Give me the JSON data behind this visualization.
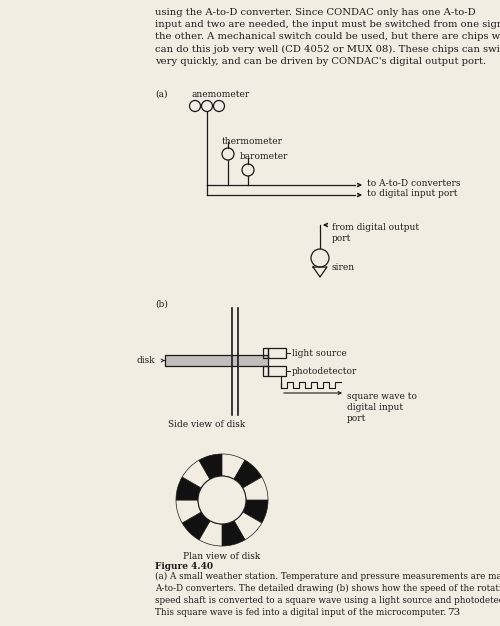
{
  "bg_color": "#f2ede3",
  "text_color": "#1a1a1a",
  "header_text": "using the A-to-D converter. Since CONDAC only has one A-to-D\ninput and two are needed, the input must be switched from one signal to\nthe other. A mechanical switch could be used, but there are chips which\ncan do this job very well (CD 4052 or MUX 08). These chips can switch\nvery quickly, and can be driven by CONDAC's digital output port.",
  "label_a": "(a)",
  "label_b": "(b)",
  "label_anemometer": "anemometer",
  "label_thermometer": "thermometer",
  "label_barometer": "barometer",
  "label_to_atod": "to A-to-D converters",
  "label_to_digital": "to digital input port",
  "label_from_digital": "from digital output\nport",
  "label_siren": "siren",
  "label_disk": "disk",
  "label_light_source": "light source",
  "label_photodetector": "photodetector",
  "label_square_wave": "square wave to\ndigital input\nport",
  "label_side_view": "Side view of disk",
  "label_plan_view": "Plan view of disk",
  "fig_caption_bold": "Figure 4.40",
  "fig_caption_text": "(a) A small weather station. Temperature and pressure measurements are made using\nA-to-D converters. The detailed drawing (b) shows how the speed of the rotating wind-\nspeed shaft is converted to a square wave using a light source and photodetector.\nThis square wave is fed into a digital input of the microcomputer.",
  "page_number": "73"
}
